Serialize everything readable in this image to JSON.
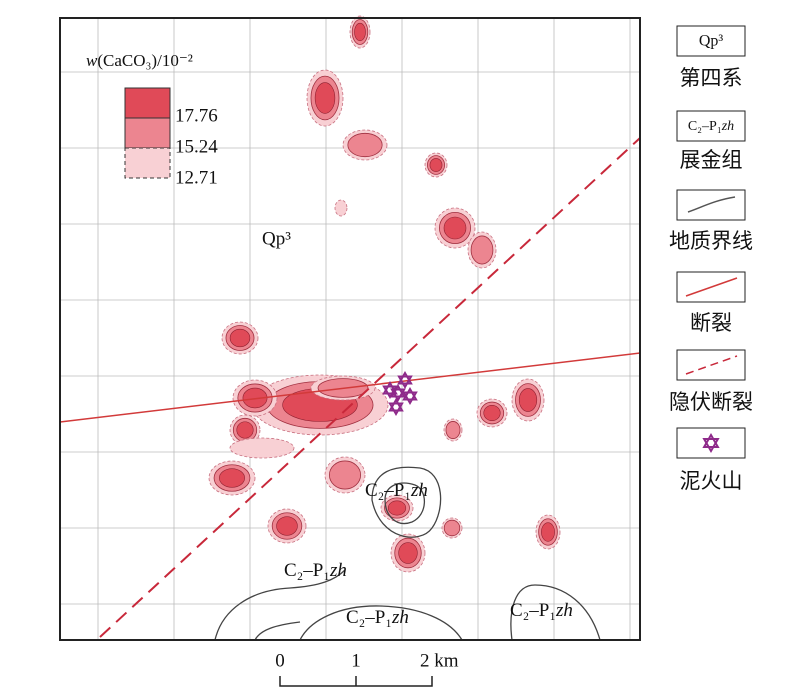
{
  "map": {
    "legend_inset": {
      "title_symbol": "w",
      "title_rest": "(CaCO₃)/10⁻²",
      "levels": [
        17.76,
        15.24,
        12.71
      ]
    },
    "labels": {
      "quaternary": "Qp³",
      "formation": [
        {
          "code": "C₂–P₁",
          "italic": "zh"
        },
        {
          "code": "C₂–P₁",
          "italic": "zh"
        },
        {
          "code": "C₂–P₁",
          "italic": "zh"
        },
        {
          "code": "C₂–P₁",
          "italic": "zh"
        }
      ]
    },
    "scale_bar": {
      "ticks": [
        "0",
        "1",
        "2 km"
      ]
    },
    "legend": [
      {
        "symbol": "Qp³",
        "label": "第四系"
      },
      {
        "symbol_code": "C₂–P₁",
        "symbol_italic": "zh",
        "label": "展金组"
      },
      {
        "label": "地质界线"
      },
      {
        "label": "断裂"
      },
      {
        "label": "隐伏断裂"
      },
      {
        "label": "泥火山"
      }
    ]
  }
}
